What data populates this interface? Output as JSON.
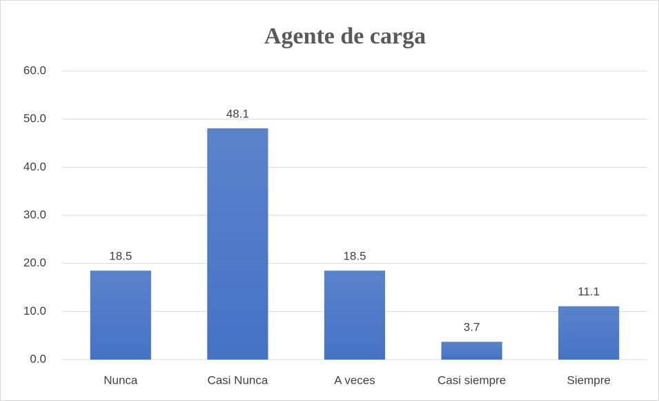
{
  "chart_data": {
    "type": "bar",
    "title": "Agente de carga",
    "categories": [
      "Nunca",
      "Casi Nunca",
      "A veces",
      "Casi siempre",
      "Siempre"
    ],
    "values": [
      18.5,
      48.1,
      18.5,
      3.7,
      11.1
    ],
    "color": "#4472c4",
    "ylim": [
      0,
      60
    ],
    "yticks": [
      {
        "value": 0,
        "label": "0.0"
      },
      {
        "value": 10,
        "label": "10.0"
      },
      {
        "value": 20,
        "label": "20.0"
      },
      {
        "value": 30,
        "label": "30.0"
      },
      {
        "value": 40,
        "label": "40.0"
      },
      {
        "value": 50,
        "label": "50.0"
      },
      {
        "value": 60,
        "label": "60.0"
      }
    ],
    "grid": true
  }
}
